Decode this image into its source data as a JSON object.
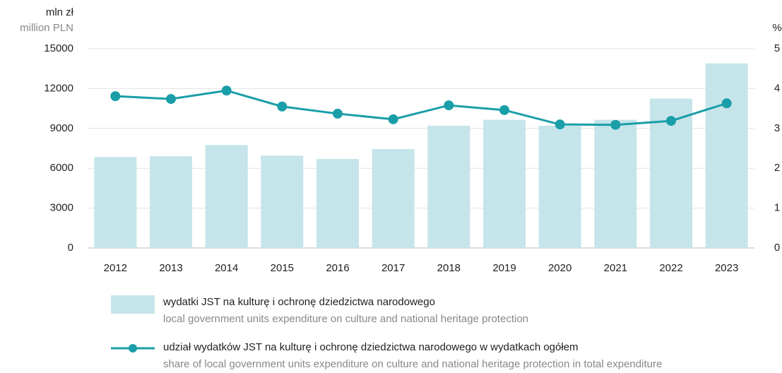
{
  "chart_data": {
    "type": "bar_line",
    "ylabel": "mln zł",
    "ylabel_en": "million PLN",
    "y2label": "%",
    "categories": [
      "2012",
      "2013",
      "2014",
      "2015",
      "2016",
      "2017",
      "2018",
      "2019",
      "2020",
      "2021",
      "2022",
      "2023"
    ],
    "series": [
      {
        "name": "wydatki JST na kulturę i ochronę dziedzictwa narodowego",
        "name_en": "local government units expenditure on culture and national heritage protection",
        "type": "bar",
        "color": "#c5e5ea",
        "values": [
          6850,
          6900,
          7750,
          6950,
          6700,
          7450,
          9200,
          9650,
          9200,
          9650,
          11250,
          13900
        ]
      },
      {
        "name": "udział wydatków JST na kulturę i ochronę dziedzictwa narodowego w wydatkach ogółem",
        "name_en": "share of local government units expenditure on culture and national heritage protection in total expenditure",
        "type": "line",
        "axis": "y2",
        "color": "#1a9ea8",
        "values": [
          3.81,
          3.74,
          3.95,
          3.55,
          3.37,
          3.23,
          3.58,
          3.46,
          3.1,
          3.09,
          3.19,
          3.63
        ]
      }
    ],
    "ylim": [
      0,
      15000
    ],
    "yticks": [
      0,
      3000,
      6000,
      9000,
      12000,
      15000
    ],
    "y2lim": [
      0,
      5
    ],
    "y2ticks": [
      0,
      1,
      2,
      3,
      4,
      5
    ],
    "grid": true
  }
}
